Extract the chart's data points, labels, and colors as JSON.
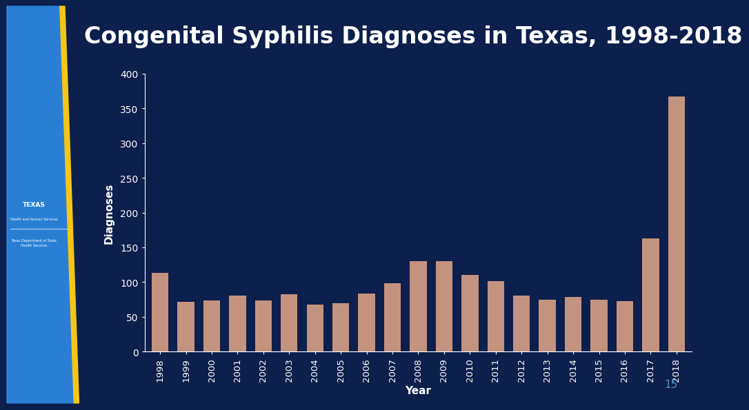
{
  "title": "Congenital Syphilis Diagnoses in Texas, 1998-2018",
  "years": [
    1998,
    1999,
    2000,
    2001,
    2002,
    2003,
    2004,
    2005,
    2006,
    2007,
    2008,
    2009,
    2010,
    2011,
    2012,
    2013,
    2014,
    2015,
    2016,
    2017,
    2018
  ],
  "values": [
    113,
    72,
    74,
    80,
    74,
    82,
    68,
    70,
    83,
    98,
    130,
    130,
    110,
    101,
    80,
    75,
    78,
    75,
    73,
    163,
    367
  ],
  "bar_color": "#c4937f",
  "bg_color": "#0d1f4c",
  "plot_bg_color": "#0d1f4c",
  "text_color": "#ffffff",
  "axis_color": "#ffffff",
  "title_fontsize": 24,
  "xlabel": "Year",
  "ylabel": "Diagnoses",
  "ylim": [
    0,
    400
  ],
  "yticks": [
    0,
    50,
    100,
    150,
    200,
    250,
    300,
    350,
    400
  ],
  "page_number": "15",
  "left_panel_color": "#2a7fd4",
  "accent_color": "#f5c518",
  "page_num_color": "#4d8fc4"
}
